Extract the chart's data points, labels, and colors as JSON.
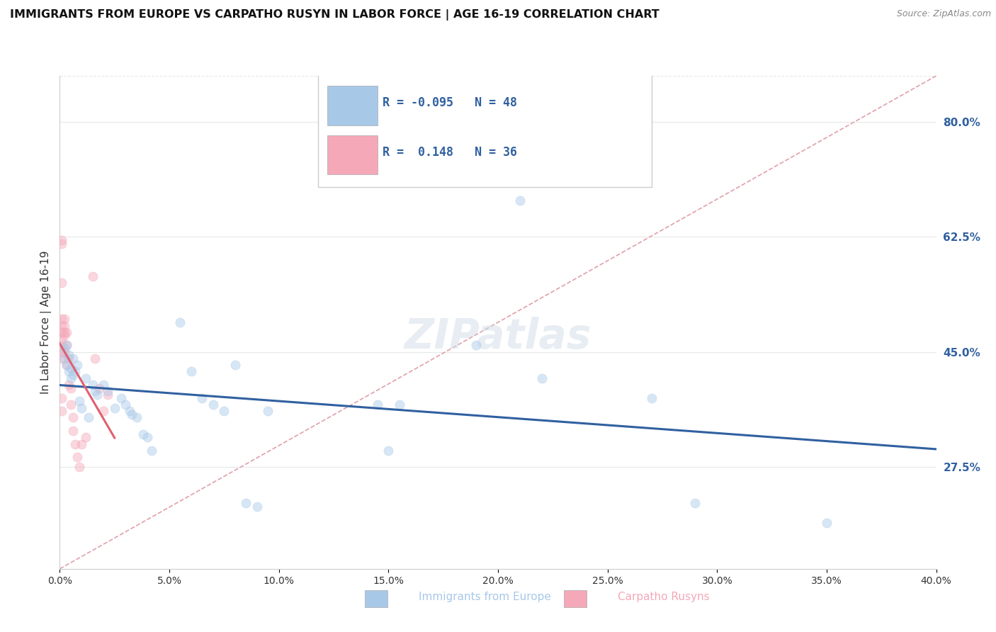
{
  "title": "IMMIGRANTS FROM EUROPE VS CARPATHO RUSYN IN LABOR FORCE | AGE 16-19 CORRELATION CHART",
  "source": "Source: ZipAtlas.com",
  "ylabel": "In Labor Force | Age 16-19",
  "blue_label": "Immigrants from Europe",
  "pink_label": "Carpatho Rusyns",
  "blue_R": -0.095,
  "blue_N": 48,
  "pink_R": 0.148,
  "pink_N": 36,
  "blue_color": "#a8c8e8",
  "pink_color": "#f4a8b8",
  "blue_line_color": "#3060a0",
  "pink_line_color": "#e06070",
  "diag_line_color": "#e0a0a8",
  "right_ytick_labels": [
    "80.0%",
    "62.5%",
    "45.0%",
    "27.5%"
  ],
  "right_ytick_values": [
    0.8,
    0.625,
    0.45,
    0.275
  ],
  "xlim": [
    0.0,
    0.4
  ],
  "ylim": [
    0.12,
    0.87
  ],
  "blue_x": [
    0.002,
    0.002,
    0.003,
    0.004,
    0.005,
    0.005,
    0.006,
    0.007,
    0.008,
    0.009,
    0.01,
    0.012,
    0.013,
    0.015,
    0.016,
    0.017,
    0.02,
    0.022,
    0.025,
    0.028,
    0.03,
    0.032,
    0.033,
    0.035,
    0.038,
    0.04,
    0.042,
    0.055,
    0.06,
    0.065,
    0.07,
    0.075,
    0.08,
    0.085,
    0.09,
    0.095,
    0.145,
    0.15,
    0.155,
    0.19,
    0.21,
    0.22,
    0.27,
    0.29,
    0.35,
    0.003,
    0.004,
    0.006
  ],
  "blue_y": [
    0.455,
    0.44,
    0.43,
    0.445,
    0.425,
    0.41,
    0.415,
    0.42,
    0.43,
    0.375,
    0.365,
    0.41,
    0.35,
    0.4,
    0.39,
    0.385,
    0.4,
    0.39,
    0.365,
    0.38,
    0.37,
    0.36,
    0.355,
    0.35,
    0.325,
    0.32,
    0.3,
    0.495,
    0.42,
    0.38,
    0.37,
    0.36,
    0.43,
    0.22,
    0.215,
    0.36,
    0.37,
    0.3,
    0.37,
    0.46,
    0.68,
    0.41,
    0.38,
    0.22,
    0.19,
    0.46,
    0.42,
    0.44
  ],
  "pink_x": [
    0.001,
    0.001,
    0.001,
    0.001,
    0.001,
    0.001,
    0.001,
    0.002,
    0.002,
    0.002,
    0.002,
    0.002,
    0.003,
    0.003,
    0.003,
    0.004,
    0.004,
    0.005,
    0.005,
    0.006,
    0.006,
    0.007,
    0.008,
    0.009,
    0.01,
    0.012,
    0.015,
    0.016,
    0.018,
    0.02,
    0.022,
    0.001,
    0.001,
    0.001,
    0.001,
    0.001
  ],
  "pink_y": [
    0.62,
    0.615,
    0.555,
    0.5,
    0.49,
    0.48,
    0.47,
    0.5,
    0.49,
    0.48,
    0.475,
    0.45,
    0.48,
    0.46,
    0.43,
    0.44,
    0.4,
    0.395,
    0.37,
    0.35,
    0.33,
    0.31,
    0.29,
    0.275,
    0.31,
    0.32,
    0.565,
    0.44,
    0.395,
    0.36,
    0.385,
    0.46,
    0.45,
    0.44,
    0.38,
    0.36
  ],
  "background_color": "#ffffff",
  "grid_color": "#e8e8e8",
  "marker_size": 90,
  "marker_alpha": 0.45
}
